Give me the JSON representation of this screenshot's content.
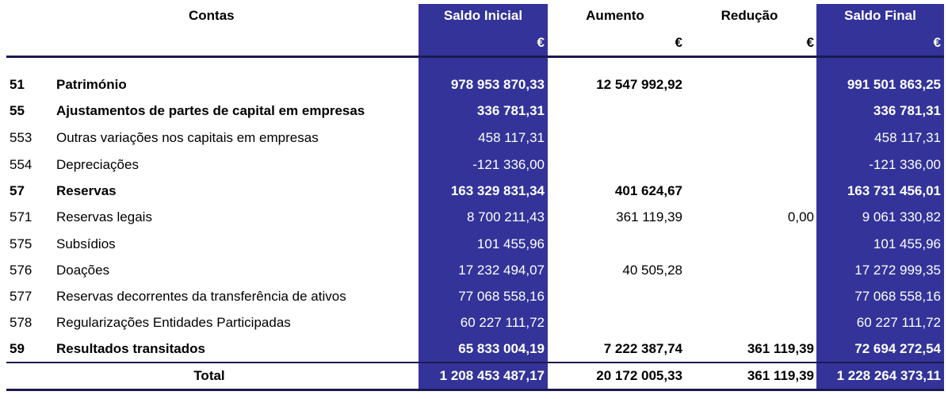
{
  "header": {
    "contas": "Contas",
    "saldo_inicial": "Saldo Inicial",
    "aumento": "Aumento",
    "reducao": "Redução",
    "saldo_final": "Saldo Final",
    "currency": "€"
  },
  "rows": [
    {
      "code": "51",
      "name": "Património",
      "si": "978 953 870,33",
      "aum": "12 547 992,92",
      "red": "",
      "sf": "991 501 863,25",
      "bold": true
    },
    {
      "code": "55",
      "name": "Ajustamentos de partes de capital em empresas",
      "si": "336 781,31",
      "aum": "",
      "red": "",
      "sf": "336 781,31",
      "bold": true
    },
    {
      "code": "553",
      "name": "Outras variações nos capitais em empresas",
      "si": "458 117,31",
      "aum": "",
      "red": "",
      "sf": "458 117,31",
      "bold": false
    },
    {
      "code": "554",
      "name": "Depreciações",
      "si": "-121 336,00",
      "aum": "",
      "red": "",
      "sf": "-121 336,00",
      "bold": false
    },
    {
      "code": "57",
      "name": "Reservas",
      "si": "163 329 831,34",
      "aum": "401 624,67",
      "red": "",
      "sf": "163 731 456,01",
      "bold": true
    },
    {
      "code": "571",
      "name": "Reservas legais",
      "si": "8 700 211,43",
      "aum": "361 119,39",
      "red": "0,00",
      "sf": "9 061 330,82",
      "bold": false
    },
    {
      "code": "575",
      "name": "Subsídios",
      "si": "101 455,96",
      "aum": "",
      "red": "",
      "sf": "101 455,96",
      "bold": false
    },
    {
      "code": "576",
      "name": "Doações",
      "si": "17 232 494,07",
      "aum": "40 505,28",
      "red": "",
      "sf": "17 272 999,35",
      "bold": false
    },
    {
      "code": "577",
      "name": "Reservas decorrentes da transferência de ativos",
      "si": "77 068 558,16",
      "aum": "",
      "red": "",
      "sf": "77 068 558,16",
      "bold": false
    },
    {
      "code": "578",
      "name": "Regularizações Entidades Participadas",
      "si": "60 227 111,72",
      "aum": "",
      "red": "",
      "sf": "60 227 111,72",
      "bold": false
    },
    {
      "code": "59",
      "name": "Resultados transitados",
      "si": "65 833 004,19",
      "aum": "7 222 387,74",
      "red": "361 119,39",
      "sf": "72 694 272,54",
      "bold": true
    }
  ],
  "total": {
    "label": "Total",
    "si": "1 208 453 487,17",
    "aum": "20 172 005,33",
    "red": "361 119,39",
    "sf": "1 228 264 373,11"
  }
}
